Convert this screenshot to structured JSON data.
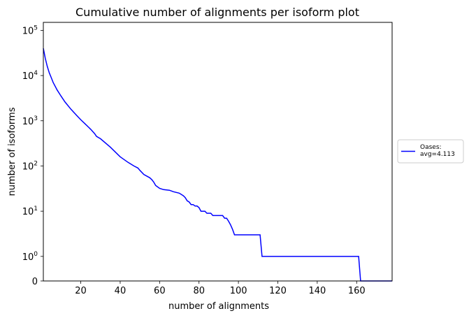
{
  "chart_data": {
    "type": "line",
    "title": "Cumulative number of alignments per isoform plot",
    "xlabel": "number of alignments",
    "ylabel": "number of isoforms",
    "xlim": [
      1,
      178
    ],
    "ylim": [
      0,
      150000
    ],
    "yscale": "symlog",
    "grid": false,
    "legend_position": "center-right-outside",
    "x_ticks": [
      {
        "value": 20,
        "label": "20"
      },
      {
        "value": 40,
        "label": "40"
      },
      {
        "value": 60,
        "label": "60"
      },
      {
        "value": 80,
        "label": "80"
      },
      {
        "value": 100,
        "label": "100"
      },
      {
        "value": 120,
        "label": "120"
      },
      {
        "value": 140,
        "label": "140"
      },
      {
        "value": 160,
        "label": "160"
      }
    ],
    "y_ticks": [
      {
        "value": 0,
        "base": "0",
        "exp": ""
      },
      {
        "value": 1,
        "base": "10",
        "exp": "0"
      },
      {
        "value": 10,
        "base": "10",
        "exp": "1"
      },
      {
        "value": 100,
        "base": "10",
        "exp": "2"
      },
      {
        "value": 1000,
        "base": "10",
        "exp": "3"
      },
      {
        "value": 10000,
        "base": "10",
        "exp": "4"
      },
      {
        "value": 100000,
        "base": "10",
        "exp": "5"
      }
    ],
    "series": [
      {
        "name": "Oases:\navg=4.113",
        "legend_lines": [
          "Oases:",
          "avg=4.113"
        ],
        "color": "#0000ff",
        "x": [
          1,
          2,
          3,
          4,
          5,
          6,
          8,
          10,
          12,
          15,
          18,
          20,
          22,
          25,
          27,
          28,
          30,
          35,
          40,
          44,
          47,
          49,
          50,
          52,
          55,
          56,
          57,
          58,
          60,
          62,
          65,
          67,
          70,
          72,
          73,
          74,
          75,
          76,
          77,
          78,
          79,
          80,
          81,
          82,
          83,
          84,
          86,
          87,
          92,
          93,
          94,
          95,
          96,
          97,
          98,
          103,
          111,
          112,
          161,
          162,
          178
        ],
        "y": [
          40000,
          24000,
          16000,
          11500,
          9000,
          7000,
          4800,
          3500,
          2600,
          1800,
          1300,
          1050,
          870,
          650,
          520,
          450,
          400,
          260,
          160,
          120,
          100,
          90,
          80,
          65,
          55,
          50,
          44,
          37,
          32,
          30,
          29,
          27,
          25,
          22,
          20,
          17,
          16,
          14,
          14,
          13,
          13,
          12,
          10,
          10,
          10,
          9,
          9,
          8,
          8,
          7,
          7,
          6,
          5,
          4,
          3,
          3,
          3,
          1,
          1,
          0,
          0
        ]
      }
    ]
  }
}
